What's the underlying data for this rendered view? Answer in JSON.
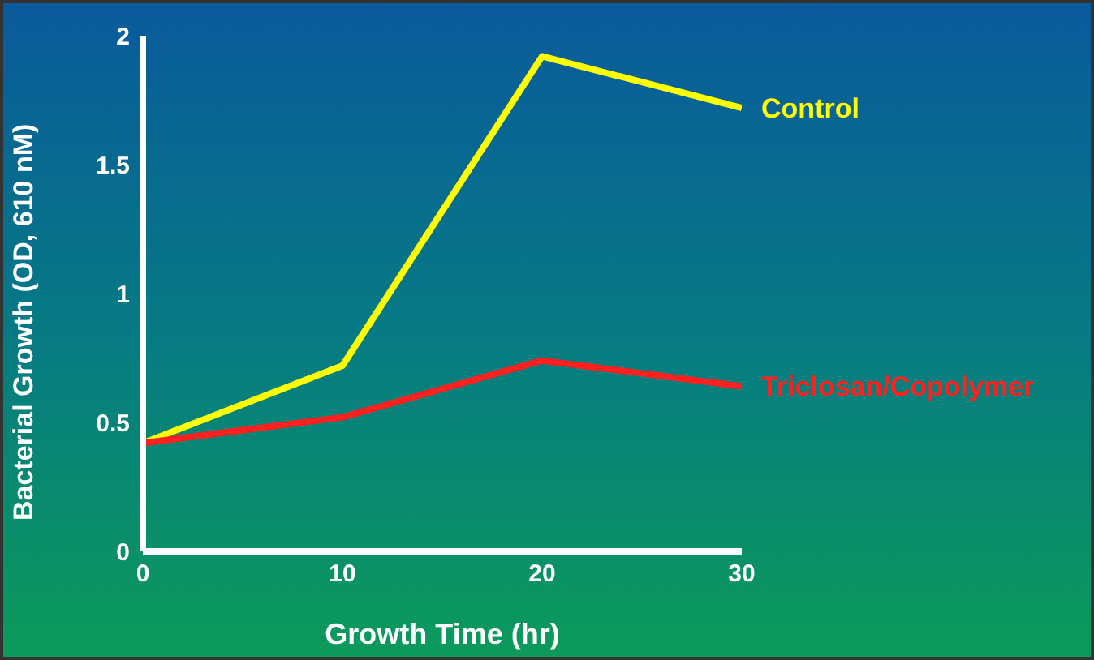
{
  "chart_data": {
    "type": "line",
    "xlabel": "Growth Time (hr)",
    "ylabel": "Bacterial Growth (OD, 610 nM)",
    "x": [
      0,
      10,
      20,
      30
    ],
    "series": [
      {
        "name": "Control",
        "color": "#ffff00",
        "values": [
          0.42,
          0.72,
          1.92,
          1.72
        ]
      },
      {
        "name": "Triclosan/Copolymer",
        "color": "#ff2020",
        "values": [
          0.42,
          0.52,
          0.74,
          0.64
        ]
      }
    ],
    "xlim": [
      0,
      30
    ],
    "xticks": [
      0,
      10,
      20,
      30
    ],
    "ylim": [
      0,
      2
    ],
    "yticks": [
      0,
      0.5,
      1,
      1.5,
      2
    ],
    "grid": false,
    "legend": false,
    "marker": "none",
    "line_style": "solid"
  }
}
